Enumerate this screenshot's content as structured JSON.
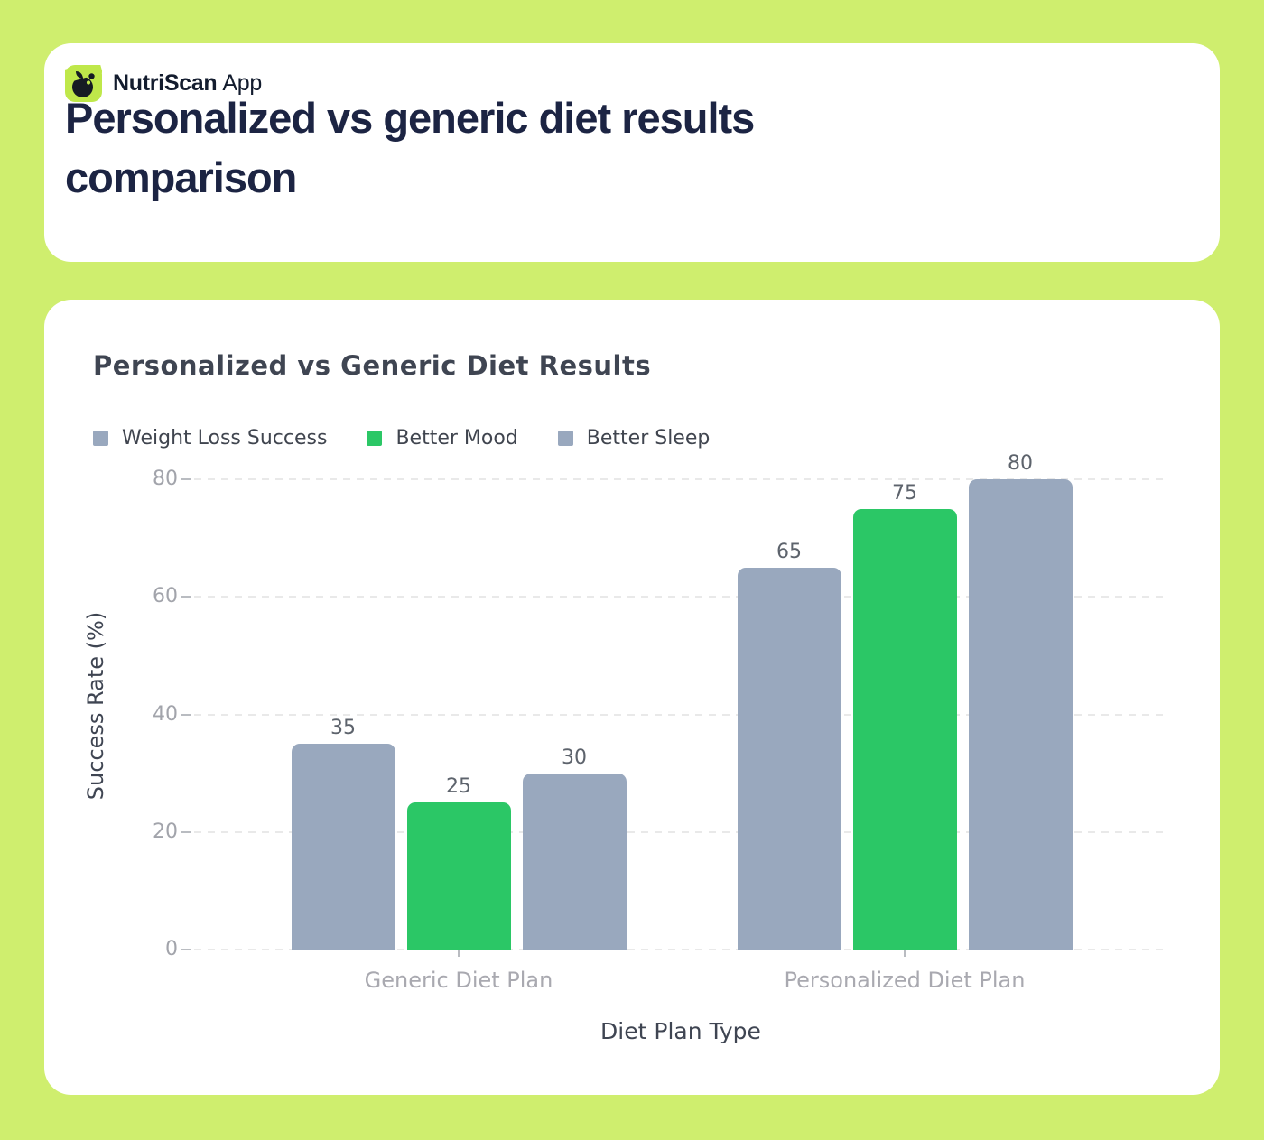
{
  "brand": {
    "name": "NutriScan",
    "suffix": "App"
  },
  "page_title": "Personalized vs generic diet results comparison",
  "chart_data": {
    "type": "bar",
    "title": "Personalized vs Generic Diet Results",
    "categories": [
      "Generic Diet Plan",
      "Personalized Diet Plan"
    ],
    "series": [
      {
        "name": "Weight Loss Success",
        "color": "#99a8be",
        "values": [
          35,
          65
        ]
      },
      {
        "name": "Better Mood",
        "color": "#2bc766",
        "values": [
          25,
          75
        ]
      },
      {
        "name": "Better Sleep",
        "color": "#99a8be",
        "values": [
          30,
          80
        ]
      }
    ],
    "xlabel": "Diet Plan Type",
    "ylabel": "Success Rate (%)",
    "ylim": [
      0,
      80
    ],
    "yticks": [
      0,
      20,
      40,
      60,
      80
    ],
    "grid": "horizontal-dashed",
    "legend_position": "top-left",
    "value_labels": true
  },
  "colors": {
    "background": "#cfee6e",
    "card": "#ffffff",
    "badge": "#bfe84a",
    "badge_glyph": "#151b23",
    "brand_text": "#131c2e",
    "title_text": "#1c2443",
    "chart_title_text": "#3f4552",
    "legend_text": "#40454f",
    "tick_text": "#a2a4ab",
    "category_text": "#a9a9b0",
    "value_label_text": "#5d636c",
    "grid": "#e9e9e9",
    "tick_mark": "#b9bcc1"
  }
}
